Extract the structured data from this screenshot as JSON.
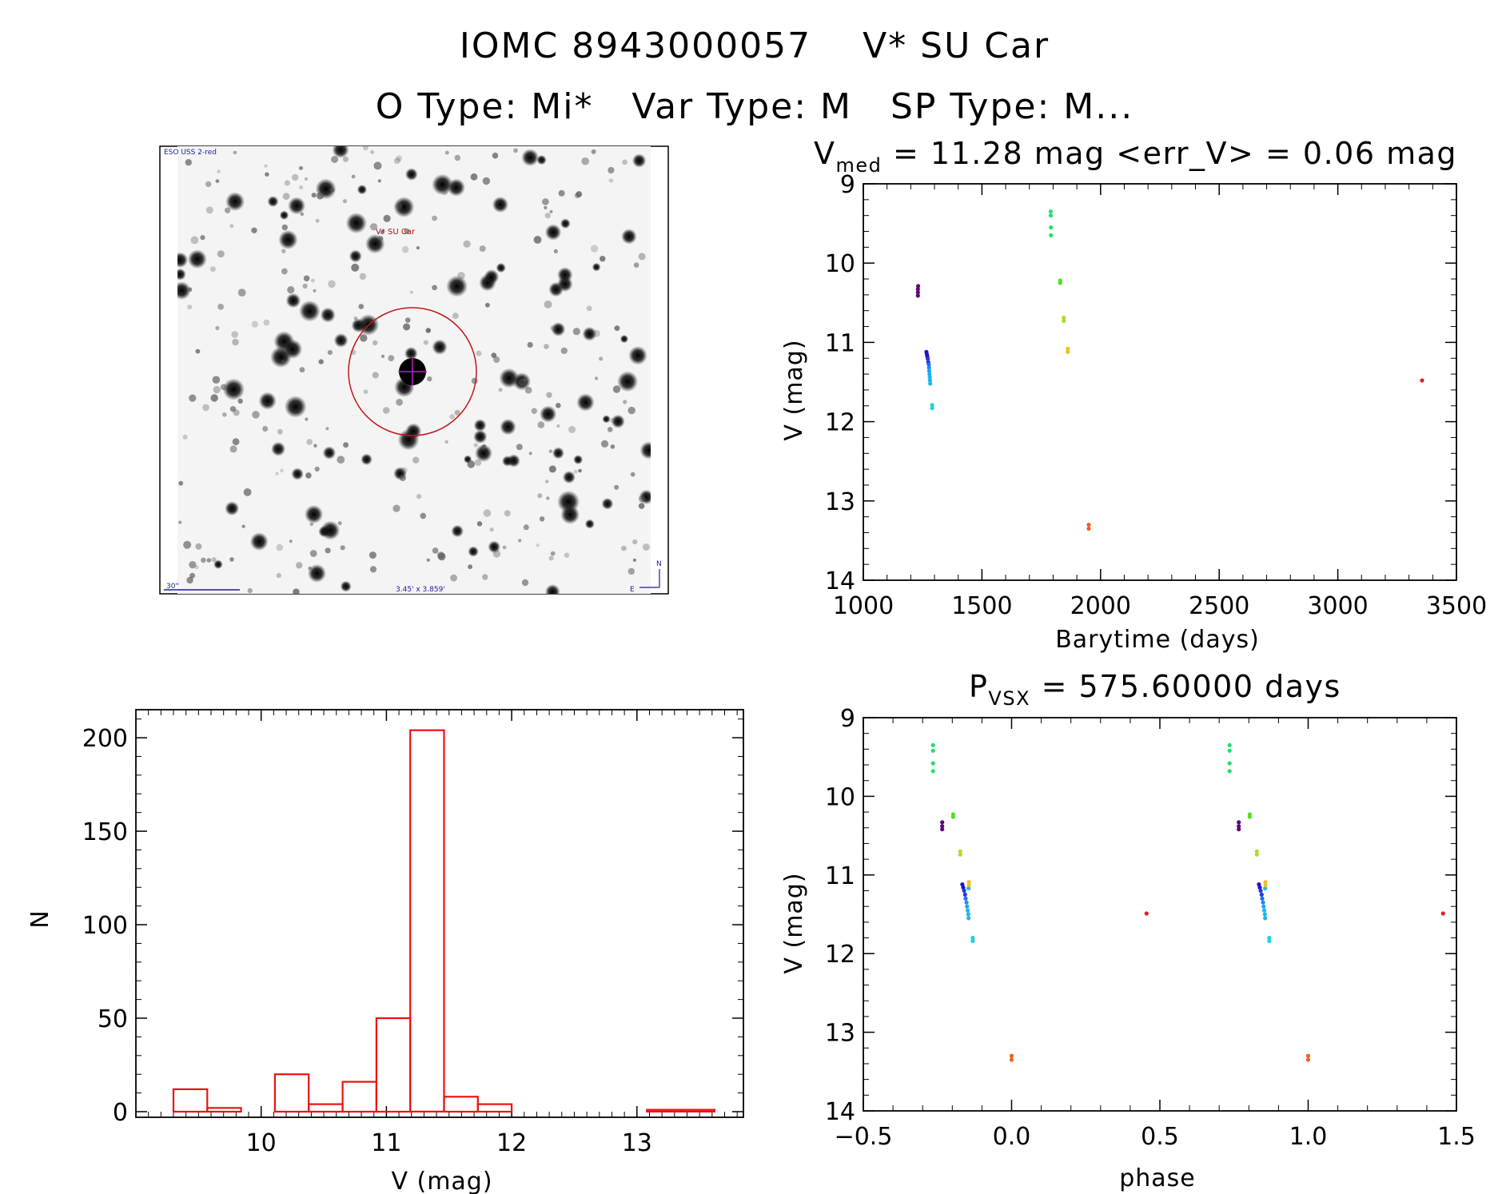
{
  "header": {
    "line1": "IOMC 8943000057    V* SU Car",
    "line2": "O Type: Mi*   Var Type: M   SP Type: M..."
  },
  "image_panel": {
    "survey_label": "ESO USS 2-red",
    "target_label": "V* SU Car",
    "scale_label": "30\"",
    "field_label": "3.45' x 3.859'",
    "compass_n": "N",
    "compass_e": "E"
  },
  "chart_data": [
    {
      "id": "lightcurve",
      "type": "scatter",
      "title_main": "V",
      "title_sub": "med",
      "title_rest": " = 11.28 mag <err_V> = 0.06 mag",
      "xlabel": "Barytime (days)",
      "ylabel": "V (mag)",
      "xlim": [
        1000,
        3500
      ],
      "ylim": [
        14,
        9
      ],
      "y_inverted": true,
      "xticks": [
        1000,
        1500,
        2000,
        2500,
        3000,
        3500
      ],
      "yticks": [
        9,
        10,
        11,
        12,
        13,
        14
      ],
      "points": [
        {
          "x": 1230,
          "y": 10.33,
          "c": "#5a0a7a"
        },
        {
          "x": 1230,
          "y": 10.37,
          "c": "#5a0a7a"
        },
        {
          "x": 1230,
          "y": 10.41,
          "c": "#5a0a7a"
        },
        {
          "x": 1231,
          "y": 10.29,
          "c": "#5a0a7a"
        },
        {
          "x": 1266,
          "y": 11.12,
          "c": "#2a0fc8"
        },
        {
          "x": 1268,
          "y": 11.15,
          "c": "#2a0fc8"
        },
        {
          "x": 1270,
          "y": 11.18,
          "c": "#2a0fc8"
        },
        {
          "x": 1272,
          "y": 11.21,
          "c": "#1f3be0"
        },
        {
          "x": 1274,
          "y": 11.25,
          "c": "#1f3be0"
        },
        {
          "x": 1276,
          "y": 11.28,
          "c": "#1f6cf0"
        },
        {
          "x": 1277,
          "y": 11.32,
          "c": "#1a8cf5"
        },
        {
          "x": 1278,
          "y": 11.36,
          "c": "#1aa6f5"
        },
        {
          "x": 1279,
          "y": 11.4,
          "c": "#1ab0f0"
        },
        {
          "x": 1280,
          "y": 11.44,
          "c": "#1ab8f0"
        },
        {
          "x": 1281,
          "y": 11.48,
          "c": "#1ab8f0"
        },
        {
          "x": 1282,
          "y": 11.52,
          "c": "#1ab8f0"
        },
        {
          "x": 1290,
          "y": 11.79,
          "c": "#22d0e0"
        },
        {
          "x": 1290,
          "y": 11.83,
          "c": "#22d0e0"
        },
        {
          "x": 1790,
          "y": 9.35,
          "c": "#20e070"
        },
        {
          "x": 1790,
          "y": 9.4,
          "c": "#20e070"
        },
        {
          "x": 1791,
          "y": 9.55,
          "c": "#20e070"
        },
        {
          "x": 1791,
          "y": 9.65,
          "c": "#20e070"
        },
        {
          "x": 1830,
          "y": 10.22,
          "c": "#50e020"
        },
        {
          "x": 1830,
          "y": 10.25,
          "c": "#50e020"
        },
        {
          "x": 1845,
          "y": 10.69,
          "c": "#a8e020"
        },
        {
          "x": 1845,
          "y": 10.73,
          "c": "#a8e020"
        },
        {
          "x": 1862,
          "y": 11.08,
          "c": "#f0c020"
        },
        {
          "x": 1862,
          "y": 11.12,
          "c": "#f0c020"
        },
        {
          "x": 1950,
          "y": 13.3,
          "c": "#f06020"
        },
        {
          "x": 1950,
          "y": 13.35,
          "c": "#f06020"
        },
        {
          "x": 3355,
          "y": 11.48,
          "c": "#e02020"
        }
      ]
    },
    {
      "id": "histogram",
      "type": "bar",
      "title": "",
      "xlabel": "V (mag)",
      "ylabel": "N",
      "xlim": [
        9.0,
        13.85
      ],
      "ylim": [
        -3,
        215
      ],
      "xticks": [
        10,
        11,
        12,
        13
      ],
      "yticks": [
        0,
        50,
        100,
        150,
        200
      ],
      "color": "#ee1111",
      "bin_width": 0.27,
      "bin_starts": [
        9.3,
        9.57,
        9.84,
        10.11,
        10.38,
        10.65,
        10.92,
        11.19,
        11.46,
        11.73,
        12.0,
        12.27,
        12.54,
        12.81,
        13.08,
        13.35
      ],
      "values": [
        12,
        2,
        0,
        20,
        4,
        16,
        50,
        204,
        8,
        4,
        0,
        0,
        0,
        0,
        1,
        1
      ]
    },
    {
      "id": "phase",
      "type": "scatter",
      "title_main": "P",
      "title_sub": "VSX",
      "title_rest": " = 575.60000 days",
      "xlabel": "phase",
      "ylabel": "V (mag)",
      "xlim": [
        -0.5,
        1.5
      ],
      "ylim": [
        14,
        9
      ],
      "y_inverted": true,
      "xticks": [
        "−0.5",
        "0.0",
        "0.5",
        "1.0",
        "1.5"
      ],
      "xtick_values": [
        -0.5,
        0.0,
        0.5,
        1.0,
        1.5
      ],
      "yticks": [
        9,
        10,
        11,
        12,
        13,
        14
      ],
      "points": [
        {
          "x": -0.265,
          "y": 9.35,
          "c": "#20e070"
        },
        {
          "x": -0.265,
          "y": 9.42,
          "c": "#20e070"
        },
        {
          "x": -0.265,
          "y": 9.58,
          "c": "#20e070"
        },
        {
          "x": -0.265,
          "y": 9.68,
          "c": "#20e070"
        },
        {
          "x": -0.197,
          "y": 10.23,
          "c": "#50e020"
        },
        {
          "x": -0.197,
          "y": 10.26,
          "c": "#50e020"
        },
        {
          "x": -0.234,
          "y": 10.33,
          "c": "#5a0a7a"
        },
        {
          "x": -0.234,
          "y": 10.38,
          "c": "#5a0a7a"
        },
        {
          "x": -0.234,
          "y": 10.42,
          "c": "#5a0a7a"
        },
        {
          "x": -0.173,
          "y": 10.7,
          "c": "#a8e020"
        },
        {
          "x": -0.173,
          "y": 10.74,
          "c": "#a8e020"
        },
        {
          "x": -0.166,
          "y": 11.12,
          "c": "#2a0fc8"
        },
        {
          "x": -0.163,
          "y": 11.16,
          "c": "#2a0fc8"
        },
        {
          "x": -0.16,
          "y": 11.2,
          "c": "#1f3be0"
        },
        {
          "x": -0.157,
          "y": 11.25,
          "c": "#1f3be0"
        },
        {
          "x": -0.155,
          "y": 11.3,
          "c": "#1f6cf0"
        },
        {
          "x": -0.152,
          "y": 11.35,
          "c": "#1a8cf5"
        },
        {
          "x": -0.15,
          "y": 11.4,
          "c": "#1aa6f5"
        },
        {
          "x": -0.148,
          "y": 11.45,
          "c": "#1ab8f0"
        },
        {
          "x": -0.146,
          "y": 11.5,
          "c": "#1ab8f0"
        },
        {
          "x": -0.145,
          "y": 11.55,
          "c": "#1ab8f0"
        },
        {
          "x": -0.145,
          "y": 11.17,
          "c": "#1ab8f0"
        },
        {
          "x": -0.144,
          "y": 11.09,
          "c": "#f0c020"
        },
        {
          "x": -0.144,
          "y": 11.13,
          "c": "#f0c020"
        },
        {
          "x": -0.131,
          "y": 11.8,
          "c": "#22d0e0"
        },
        {
          "x": -0.131,
          "y": 11.84,
          "c": "#22d0e0"
        },
        {
          "x": 0.0,
          "y": 13.3,
          "c": "#f06020"
        },
        {
          "x": 0.0,
          "y": 13.35,
          "c": "#f06020"
        },
        {
          "x": 0.455,
          "y": 11.49,
          "c": "#e02020"
        },
        {
          "x": 0.735,
          "y": 9.35,
          "c": "#20e070"
        },
        {
          "x": 0.735,
          "y": 9.42,
          "c": "#20e070"
        },
        {
          "x": 0.735,
          "y": 9.58,
          "c": "#20e070"
        },
        {
          "x": 0.735,
          "y": 9.68,
          "c": "#20e070"
        },
        {
          "x": 0.803,
          "y": 10.23,
          "c": "#50e020"
        },
        {
          "x": 0.803,
          "y": 10.26,
          "c": "#50e020"
        },
        {
          "x": 0.766,
          "y": 10.33,
          "c": "#5a0a7a"
        },
        {
          "x": 0.766,
          "y": 10.38,
          "c": "#5a0a7a"
        },
        {
          "x": 0.766,
          "y": 10.42,
          "c": "#5a0a7a"
        },
        {
          "x": 0.827,
          "y": 10.7,
          "c": "#a8e020"
        },
        {
          "x": 0.827,
          "y": 10.74,
          "c": "#a8e020"
        },
        {
          "x": 0.834,
          "y": 11.12,
          "c": "#2a0fc8"
        },
        {
          "x": 0.837,
          "y": 11.16,
          "c": "#2a0fc8"
        },
        {
          "x": 0.84,
          "y": 11.2,
          "c": "#1f3be0"
        },
        {
          "x": 0.843,
          "y": 11.25,
          "c": "#1f3be0"
        },
        {
          "x": 0.845,
          "y": 11.3,
          "c": "#1f6cf0"
        },
        {
          "x": 0.848,
          "y": 11.35,
          "c": "#1a8cf5"
        },
        {
          "x": 0.85,
          "y": 11.4,
          "c": "#1aa6f5"
        },
        {
          "x": 0.852,
          "y": 11.45,
          "c": "#1ab8f0"
        },
        {
          "x": 0.854,
          "y": 11.5,
          "c": "#1ab8f0"
        },
        {
          "x": 0.855,
          "y": 11.55,
          "c": "#1ab8f0"
        },
        {
          "x": 0.855,
          "y": 11.17,
          "c": "#1ab8f0"
        },
        {
          "x": 0.856,
          "y": 11.09,
          "c": "#f0c020"
        },
        {
          "x": 0.856,
          "y": 11.13,
          "c": "#f0c020"
        },
        {
          "x": 0.869,
          "y": 11.8,
          "c": "#22d0e0"
        },
        {
          "x": 0.869,
          "y": 11.84,
          "c": "#22d0e0"
        },
        {
          "x": 1.0,
          "y": 13.3,
          "c": "#f06020"
        },
        {
          "x": 1.0,
          "y": 13.35,
          "c": "#f06020"
        },
        {
          "x": 1.455,
          "y": 11.49,
          "c": "#e02020"
        }
      ]
    }
  ]
}
